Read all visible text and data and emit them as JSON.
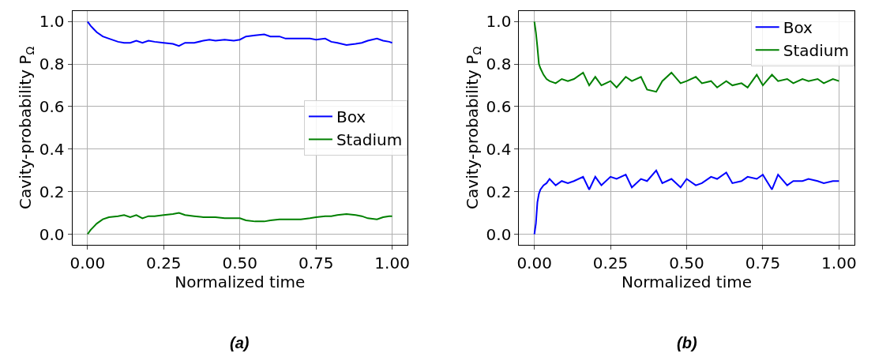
{
  "chart_data": [
    {
      "type": "line",
      "xlabel": "Normalized time",
      "ylabel": "Cavity-probability P$_{Ω}$",
      "annotations": [
        "(a)"
      ],
      "grid": true,
      "legend": "right",
      "xlim": [
        -0.05,
        1.05
      ],
      "xticks": [
        {
          "value": 0,
          "label": "0.00"
        },
        {
          "value": 0.25,
          "label": "0.25"
        },
        {
          "value": 0.5,
          "label": "0.50"
        },
        {
          "value": 0.75,
          "label": "0.75"
        },
        {
          "value": 1,
          "label": "1.00"
        }
      ],
      "ylim": [
        -0.05,
        1.05
      ],
      "yticks": [
        {
          "value": 0,
          "label": "0.0"
        },
        {
          "value": 0.2,
          "label": "0.2"
        },
        {
          "value": 0.4,
          "label": "0.4"
        },
        {
          "value": 0.6,
          "label": "0.6"
        },
        {
          "value": 0.8,
          "label": "0.8"
        },
        {
          "value": 1,
          "label": "1.0"
        }
      ],
      "x": [
        0,
        0.01,
        0.02,
        0.03,
        0.05,
        0.07,
        0.1,
        0.12,
        0.14,
        0.16,
        0.18,
        0.2,
        0.22,
        0.25,
        0.28,
        0.3,
        0.32,
        0.35,
        0.38,
        0.4,
        0.42,
        0.45,
        0.48,
        0.5,
        0.52,
        0.55,
        0.58,
        0.6,
        0.63,
        0.65,
        0.68,
        0.7,
        0.73,
        0.75,
        0.78,
        0.8,
        0.82,
        0.85,
        0.88,
        0.9,
        0.92,
        0.95,
        0.97,
        0.99,
        1.0
      ],
      "series": [
        {
          "name": "Box",
          "color": "#0000ff",
          "values": [
            1.0,
            0.98,
            0.965,
            0.95,
            0.93,
            0.92,
            0.905,
            0.9,
            0.9,
            0.91,
            0.9,
            0.91,
            0.905,
            0.9,
            0.895,
            0.885,
            0.9,
            0.9,
            0.91,
            0.915,
            0.91,
            0.915,
            0.91,
            0.915,
            0.93,
            0.935,
            0.94,
            0.93,
            0.93,
            0.92,
            0.92,
            0.92,
            0.92,
            0.915,
            0.92,
            0.905,
            0.9,
            0.89,
            0.895,
            0.9,
            0.91,
            0.92,
            0.91,
            0.905,
            0.9
          ]
        },
        {
          "name": "Stadium",
          "color": "#008000",
          "values": [
            0,
            0.02,
            0.035,
            0.05,
            0.07,
            0.08,
            0.085,
            0.09,
            0.08,
            0.09,
            0.075,
            0.085,
            0.085,
            0.09,
            0.095,
            0.1,
            0.09,
            0.085,
            0.08,
            0.08,
            0.08,
            0.075,
            0.075,
            0.075,
            0.065,
            0.06,
            0.06,
            0.065,
            0.07,
            0.07,
            0.07,
            0.07,
            0.075,
            0.08,
            0.085,
            0.085,
            0.09,
            0.095,
            0.09,
            0.085,
            0.075,
            0.07,
            0.08,
            0.085,
            0.085
          ]
        }
      ]
    },
    {
      "type": "line",
      "xlabel": "Normalized time",
      "ylabel": "Cavity-probability P$_{Ω}$",
      "annotations": [
        "(b)"
      ],
      "grid": true,
      "legend": "top right",
      "xlim": [
        -0.05,
        1.05
      ],
      "xticks": [
        {
          "value": 0,
          "label": "0.00"
        },
        {
          "value": 0.25,
          "label": "0.25"
        },
        {
          "value": 0.5,
          "label": "0.50"
        },
        {
          "value": 0.75,
          "label": "0.75"
        },
        {
          "value": 1,
          "label": "1.00"
        }
      ],
      "ylim": [
        -0.05,
        1.05
      ],
      "yticks": [
        {
          "value": 0,
          "label": "0.0"
        },
        {
          "value": 0.2,
          "label": "0.2"
        },
        {
          "value": 0.4,
          "label": "0.4"
        },
        {
          "value": 0.6,
          "label": "0.6"
        },
        {
          "value": 0.8,
          "label": "0.8"
        },
        {
          "value": 1,
          "label": "1.0"
        }
      ],
      "x": [
        0,
        0.005,
        0.01,
        0.015,
        0.02,
        0.03,
        0.04,
        0.05,
        0.07,
        0.09,
        0.11,
        0.13,
        0.16,
        0.18,
        0.2,
        0.22,
        0.25,
        0.27,
        0.3,
        0.32,
        0.35,
        0.37,
        0.4,
        0.42,
        0.45,
        0.48,
        0.5,
        0.53,
        0.55,
        0.58,
        0.6,
        0.63,
        0.65,
        0.68,
        0.7,
        0.73,
        0.75,
        0.78,
        0.8,
        0.83,
        0.85,
        0.88,
        0.9,
        0.93,
        0.95,
        0.98,
        1.0
      ],
      "series": [
        {
          "name": "Box",
          "color": "#0000ff",
          "values": [
            0,
            0.05,
            0.15,
            0.19,
            0.21,
            0.23,
            0.24,
            0.26,
            0.23,
            0.25,
            0.24,
            0.25,
            0.27,
            0.21,
            0.27,
            0.23,
            0.27,
            0.26,
            0.28,
            0.22,
            0.26,
            0.25,
            0.3,
            0.24,
            0.26,
            0.22,
            0.26,
            0.23,
            0.24,
            0.27,
            0.26,
            0.29,
            0.24,
            0.25,
            0.27,
            0.26,
            0.28,
            0.21,
            0.28,
            0.23,
            0.25,
            0.25,
            0.26,
            0.25,
            0.24,
            0.25,
            0.25
          ]
        },
        {
          "name": "Stadium",
          "color": "#008000",
          "values": [
            1.0,
            0.95,
            0.88,
            0.8,
            0.78,
            0.75,
            0.73,
            0.72,
            0.71,
            0.73,
            0.72,
            0.73,
            0.76,
            0.7,
            0.74,
            0.7,
            0.72,
            0.69,
            0.74,
            0.72,
            0.74,
            0.68,
            0.67,
            0.72,
            0.76,
            0.71,
            0.72,
            0.74,
            0.71,
            0.72,
            0.69,
            0.72,
            0.7,
            0.71,
            0.69,
            0.75,
            0.7,
            0.75,
            0.72,
            0.73,
            0.71,
            0.73,
            0.72,
            0.73,
            0.71,
            0.73,
            0.72
          ]
        }
      ]
    }
  ]
}
